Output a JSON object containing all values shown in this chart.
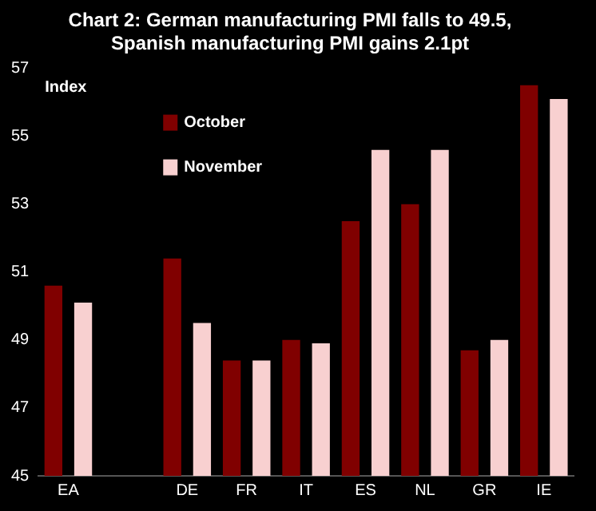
{
  "chart_data": {
    "type": "bar",
    "title": "Chart 2: German manufacturing PMI falls to 49.5, Spanish manufacturing PMI gains 2.1pt",
    "ylabel": "Index",
    "categories": [
      "EA",
      null,
      "DE",
      "FR",
      "IT",
      "ES",
      "NL",
      "GR",
      "IE"
    ],
    "series": [
      {
        "name": "October",
        "color": "#800000",
        "values": [
          50.6,
          null,
          51.4,
          48.4,
          49.0,
          52.5,
          53.0,
          48.7,
          56.5
        ]
      },
      {
        "name": "November",
        "color": "#f8d0d0",
        "values": [
          50.1,
          null,
          49.5,
          48.4,
          48.9,
          54.6,
          54.6,
          49.0,
          56.1
        ]
      }
    ],
    "ylim": [
      45,
      57
    ],
    "yticks": [
      45,
      47,
      49,
      51,
      53,
      55,
      57
    ],
    "legend": "top left",
    "grid": false
  }
}
